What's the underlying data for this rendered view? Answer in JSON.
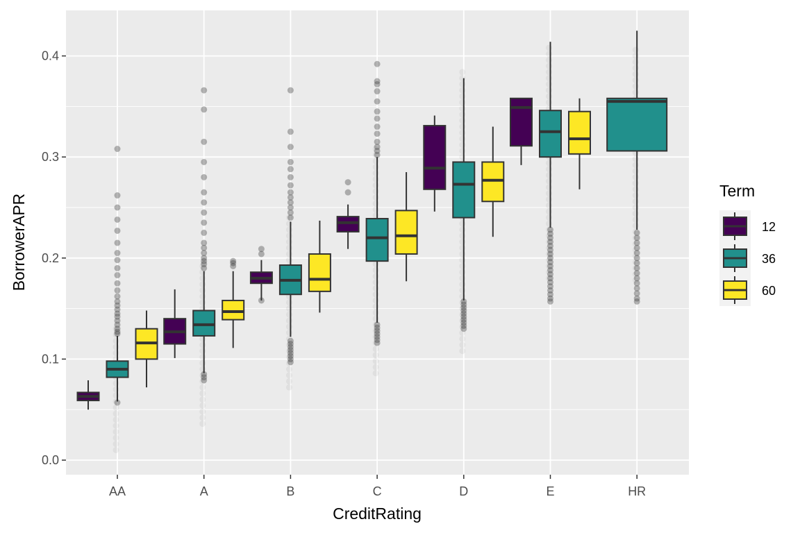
{
  "chart_data": {
    "type": "box",
    "title": "",
    "xlabel": "CreditRating",
    "ylabel": "BorrowerAPR",
    "ylim": [
      -0.014,
      0.445
    ],
    "yticks": [
      0.0,
      0.1,
      0.2,
      0.3,
      0.4
    ],
    "ytick_labels": [
      "0.0",
      "0.1",
      "0.2",
      "0.3",
      "0.4"
    ],
    "grid": true,
    "legend": {
      "title": "Term",
      "position": "right",
      "entries": [
        {
          "label": "12",
          "color": "#440154"
        },
        {
          "label": "36",
          "color": "#21908C"
        },
        {
          "label": "60",
          "color": "#FDE725"
        }
      ]
    },
    "categories": [
      "AA",
      "A",
      "B",
      "C",
      "D",
      "E",
      "HR"
    ],
    "boxes": [
      {
        "category": "AA",
        "term": "12",
        "min": 0.05,
        "q1": 0.059,
        "median": 0.063,
        "q3": 0.067,
        "max": 0.079,
        "outliers": []
      },
      {
        "category": "AA",
        "term": "36",
        "min": 0.058,
        "q1": 0.082,
        "median": 0.09,
        "q3": 0.098,
        "max": 0.123,
        "outliers": [
          0.057,
          0.125,
          0.127,
          0.13,
          0.134,
          0.138,
          0.142,
          0.145,
          0.149,
          0.153,
          0.157,
          0.162,
          0.168,
          0.175,
          0.183,
          0.19,
          0.198,
          0.205,
          0.215,
          0.227,
          0.238,
          0.25,
          0.262,
          0.308
        ]
      },
      {
        "category": "AA",
        "term": "60",
        "min": 0.072,
        "q1": 0.1,
        "median": 0.116,
        "q3": 0.13,
        "max": 0.148,
        "outliers": []
      },
      {
        "category": "A",
        "term": "12",
        "min": 0.101,
        "q1": 0.115,
        "median": 0.127,
        "q3": 0.14,
        "max": 0.169,
        "outliers": []
      },
      {
        "category": "A",
        "term": "36",
        "min": 0.086,
        "q1": 0.123,
        "median": 0.134,
        "q3": 0.148,
        "max": 0.187,
        "outliers": [
          0.079,
          0.082,
          0.085,
          0.19,
          0.194,
          0.197,
          0.2,
          0.205,
          0.21,
          0.215,
          0.225,
          0.235,
          0.245,
          0.255,
          0.265,
          0.28,
          0.295,
          0.315,
          0.347,
          0.366
        ]
      },
      {
        "category": "A",
        "term": "60",
        "min": 0.111,
        "q1": 0.139,
        "median": 0.147,
        "q3": 0.158,
        "max": 0.187,
        "outliers": [
          0.192,
          0.195,
          0.197
        ]
      },
      {
        "category": "B",
        "term": "12",
        "min": 0.158,
        "q1": 0.175,
        "median": 0.18,
        "q3": 0.186,
        "max": 0.198,
        "outliers": [
          0.158,
          0.204,
          0.209
        ]
      },
      {
        "category": "B",
        "term": "36",
        "min": 0.122,
        "q1": 0.164,
        "median": 0.178,
        "q3": 0.193,
        "max": 0.236,
        "outliers": [
          0.097,
          0.1,
          0.103,
          0.106,
          0.109,
          0.112,
          0.115,
          0.118,
          0.24,
          0.245,
          0.25,
          0.255,
          0.26,
          0.265,
          0.272,
          0.28,
          0.288,
          0.295,
          0.31,
          0.325,
          0.366
        ]
      },
      {
        "category": "B",
        "term": "60",
        "min": 0.146,
        "q1": 0.167,
        "median": 0.179,
        "q3": 0.204,
        "max": 0.237,
        "outliers": []
      },
      {
        "category": "C",
        "term": "12",
        "min": 0.209,
        "q1": 0.226,
        "median": 0.235,
        "q3": 0.241,
        "max": 0.253,
        "outliers": [
          0.265,
          0.275
        ]
      },
      {
        "category": "C",
        "term": "36",
        "min": 0.136,
        "q1": 0.197,
        "median": 0.22,
        "q3": 0.239,
        "max": 0.3,
        "outliers": [
          0.116,
          0.119,
          0.122,
          0.125,
          0.128,
          0.131,
          0.134,
          0.302,
          0.306,
          0.31,
          0.315,
          0.323,
          0.33,
          0.338,
          0.345,
          0.355,
          0.365,
          0.372,
          0.375,
          0.392
        ]
      },
      {
        "category": "C",
        "term": "60",
        "min": 0.177,
        "q1": 0.204,
        "median": 0.222,
        "q3": 0.247,
        "max": 0.285,
        "outliers": []
      },
      {
        "category": "D",
        "term": "12",
        "min": 0.246,
        "q1": 0.268,
        "median": 0.289,
        "q3": 0.331,
        "max": 0.341,
        "outliers": []
      },
      {
        "category": "D",
        "term": "36",
        "min": 0.158,
        "q1": 0.24,
        "median": 0.273,
        "q3": 0.295,
        "max": 0.378,
        "outliers": [
          0.13,
          0.133,
          0.136,
          0.139,
          0.142,
          0.145,
          0.148,
          0.151,
          0.154,
          0.157
        ]
      },
      {
        "category": "D",
        "term": "60",
        "min": 0.221,
        "q1": 0.256,
        "median": 0.277,
        "q3": 0.295,
        "max": 0.33,
        "outliers": []
      },
      {
        "category": "E",
        "term": "12",
        "min": 0.292,
        "q1": 0.311,
        "median": 0.349,
        "q3": 0.358,
        "max": 0.358,
        "outliers": []
      },
      {
        "category": "E",
        "term": "36",
        "min": 0.23,
        "q1": 0.3,
        "median": 0.325,
        "q3": 0.346,
        "max": 0.414,
        "outliers": [
          0.157,
          0.16,
          0.164,
          0.168,
          0.172,
          0.176,
          0.18,
          0.184,
          0.188,
          0.192,
          0.196,
          0.2,
          0.204,
          0.208,
          0.212,
          0.216,
          0.22,
          0.224,
          0.228
        ]
      },
      {
        "category": "E",
        "term": "60",
        "min": 0.268,
        "q1": 0.303,
        "median": 0.318,
        "q3": 0.345,
        "max": 0.358,
        "outliers": []
      },
      {
        "category": "HR",
        "term": "36",
        "min": 0.228,
        "q1": 0.306,
        "median": 0.355,
        "q3": 0.358,
        "max": 0.425,
        "outliers": [
          0.157,
          0.16,
          0.165,
          0.17,
          0.175,
          0.18,
          0.185,
          0.19,
          0.195,
          0.2,
          0.205,
          0.21,
          0.215,
          0.22,
          0.225
        ]
      }
    ]
  }
}
